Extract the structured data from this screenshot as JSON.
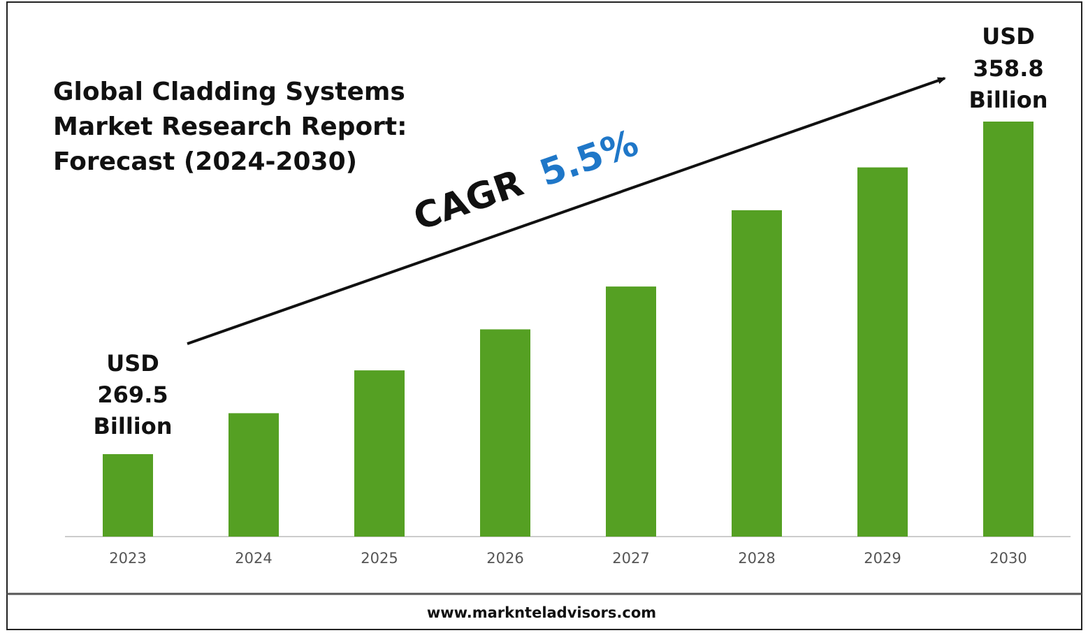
{
  "title_lines": [
    "Global Cladding Systems",
    "Market Research Report:",
    "Forecast (2024-2030)"
  ],
  "cagr": {
    "prefix": "CAGR",
    "value": "5.5%",
    "value_color": "#1f77c8"
  },
  "start_label": [
    "USD",
    "269.5",
    "Billion"
  ],
  "end_label": [
    "USD",
    "358.8",
    "Billion"
  ],
  "footer": {
    "website": "www.marknteladvisors.com"
  },
  "colors": {
    "bar": "#55a023",
    "axis": "#cccccc",
    "text": "#111111"
  },
  "chart_data": {
    "type": "bar",
    "categories": [
      "2023",
      "2024",
      "2025",
      "2026",
      "2027",
      "2028",
      "2029",
      "2030"
    ],
    "values": [
      269.5,
      280.5,
      292.0,
      303.0,
      314.5,
      335.0,
      346.5,
      358.8
    ],
    "units": "USD Billion",
    "title": "Global Cladding Systems Market Research Report: Forecast (2024-2030)",
    "xlabel": "",
    "ylabel": "",
    "grid": false,
    "legend": "none"
  }
}
